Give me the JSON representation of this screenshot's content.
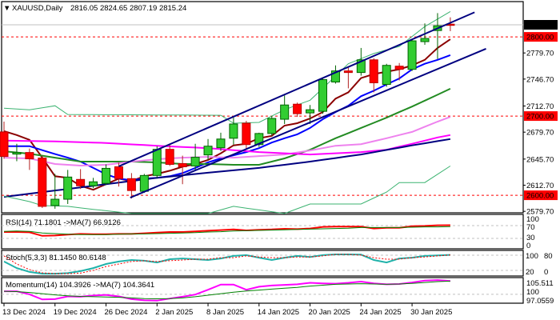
{
  "header": {
    "menu_icon": "triangle-down-icon",
    "symbol": "XAUUSD,Daily",
    "ohlc": "2816.05 2824.65 2807.19 2815.24"
  },
  "price_axis": {
    "current_price": "2815.24",
    "ticks": [
      "2779.70",
      "2746.70",
      "2712.70",
      "2679.70",
      "2645.70",
      "2612.70",
      "2579.70"
    ],
    "levels": [
      "2800.00",
      "2700.00",
      "2600.00"
    ]
  },
  "colors": {
    "bull": "#32CD32",
    "bear": "#FF0000",
    "level": "#FF0000",
    "ma_fast": "#8B0000",
    "ma_blue": "#0000FF",
    "ma_green": "#228B22",
    "ma_violet": "#EE82EE",
    "ma_magenta": "#FF00FF",
    "ma_navy": "#000080",
    "bands": "#3CB371",
    "trend": "#000080",
    "rsi": "#FF0000",
    "rsi_ma": "#008000",
    "stoch_main": "#20B2AA",
    "stoch_signal": "#FF0000",
    "momentum": "#FF00FF",
    "momentum_ma": "#008000"
  },
  "date_ticks": [
    {
      "bar": 1,
      "label": "13 Dec 2024"
    },
    {
      "bar": 5,
      "label": "19 Dec 2024"
    },
    {
      "bar": 9,
      "label": "26 Dec 2024"
    },
    {
      "bar": 13,
      "label": "2 Jan 2025"
    },
    {
      "bar": 17,
      "label": "8 Jan 2025"
    },
    {
      "bar": 21,
      "label": "14 Jan 2025"
    },
    {
      "bar": 25,
      "label": "20 Jan 2025"
    },
    {
      "bar": 29,
      "label": "24 Jan 2025"
    },
    {
      "bar": 33,
      "label": "30 Jan 2025"
    }
  ],
  "chart_data": [
    {
      "type": "candlestick",
      "title": "XAUUSD,Daily",
      "ylim": [
        2579.7,
        2846.5
      ],
      "current_price": 2815.24,
      "horizontal_levels": [
        2800,
        2700,
        2600
      ],
      "ohlc": [
        [
          2680,
          2693,
          2646,
          2649
        ],
        [
          2652,
          2665,
          2643,
          2654
        ],
        [
          2654,
          2659,
          2632,
          2646
        ],
        [
          2647,
          2650,
          2584,
          2586
        ],
        [
          2587,
          2627,
          2583,
          2595
        ],
        [
          2595,
          2632,
          2589,
          2623
        ],
        [
          2620,
          2633,
          2608,
          2612
        ],
        [
          2612,
          2622,
          2609,
          2617
        ],
        [
          2615,
          2639,
          2613,
          2634
        ],
        [
          2636,
          2641,
          2611,
          2621
        ],
        [
          2621,
          2628,
          2596,
          2606
        ],
        [
          2605,
          2627,
          2603,
          2625
        ],
        [
          2625,
          2662,
          2622,
          2658
        ],
        [
          2658,
          2664,
          2637,
          2639
        ],
        [
          2640,
          2650,
          2614,
          2636
        ],
        [
          2637,
          2665,
          2632,
          2648
        ],
        [
          2651,
          2671,
          2645,
          2662
        ],
        [
          2660,
          2679,
          2656,
          2671
        ],
        [
          2672,
          2698,
          2664,
          2690
        ],
        [
          2691,
          2694,
          2658,
          2664
        ],
        [
          2664,
          2679,
          2661,
          2678
        ],
        [
          2678,
          2700,
          2675,
          2697
        ],
        [
          2696,
          2726,
          2690,
          2714
        ],
        [
          2715,
          2717,
          2699,
          2703
        ],
        [
          2704,
          2714,
          2690,
          2708
        ],
        [
          2706,
          2748,
          2703,
          2746
        ],
        [
          2743,
          2764,
          2741,
          2757
        ],
        [
          2757,
          2761,
          2735,
          2755
        ],
        [
          2755,
          2786,
          2751,
          2771
        ],
        [
          2771,
          2773,
          2730,
          2742
        ],
        [
          2740,
          2766,
          2737,
          2764
        ],
        [
          2763,
          2767,
          2745,
          2759
        ],
        [
          2759,
          2797,
          2757,
          2795
        ],
        [
          2794,
          2817,
          2790,
          2798
        ],
        [
          2808,
          2830,
          2772,
          2814
        ],
        [
          2816.05,
          2824.65,
          2807.19,
          2815.24
        ]
      ],
      "lines": [
        {
          "key": "ma_fast",
          "width": 2,
          "values": [
            2681,
            2676,
            2670,
            2647.5,
            2624,
            2622,
            2612,
            2607,
            2614,
            2621,
            2618,
            2624,
            2627,
            2631,
            2636,
            2639.5,
            2644.5,
            2653,
            2663,
            2665,
            2672,
            2675,
            2688,
            2691,
            2697,
            2705,
            2722,
            2730,
            2748,
            2753,
            2756,
            2759,
            2764,
            2771,
            2786,
            2797
          ]
        },
        {
          "key": "ma_blue",
          "width": 2,
          "values": [
            2662,
            2662,
            2662,
            2657,
            2652,
            2647.5,
            2642.5,
            2634.5,
            2626.5,
            2621,
            2619,
            2621,
            2622,
            2624,
            2628,
            2634.5,
            2641.5,
            2646.5,
            2650.5,
            2654.5,
            2659.5,
            2666.5,
            2672,
            2677,
            2685,
            2696,
            2705,
            2713,
            2725,
            2732,
            2740,
            2747.5,
            2759,
            2766,
            2771,
            2777
          ]
        },
        {
          "key": "ma_green",
          "width": 2,
          "values": [
            2655.5,
            null,
            2652.5,
            null,
            2647.5,
            null,
            2642.5,
            null,
            2642.5,
            null,
            2642.5,
            null,
            2641.5,
            null,
            2639.5,
            null,
            2639.5,
            null,
            2638.5,
            null,
            2638.5,
            null,
            2646.5,
            null,
            2657.5,
            null,
            2672,
            null,
            2685,
            null,
            2698,
            null,
            2712,
            null,
            2727,
            2734.5
          ]
        },
        {
          "key": "ma_violet",
          "width": 2,
          "values": [
            2647.5,
            null,
            2646.5,
            null,
            2639.5,
            null,
            2637.5,
            null,
            2638.5,
            null,
            2642.5,
            null,
            2645.5,
            null,
            2647.5,
            null,
            2648.5,
            null,
            2647.5,
            null,
            2649.5,
            null,
            2651.5,
            null,
            2656.5,
            null,
            2662.5,
            null,
            2664.5,
            null,
            2672,
            null,
            2680,
            null,
            2693,
            2699
          ]
        },
        {
          "key": "ma_magenta",
          "width": 2,
          "values": [
            2669,
            null,
            null,
            null,
            2668,
            null,
            null,
            null,
            2666,
            null,
            null,
            null,
            2662.5,
            null,
            null,
            null,
            2659.5,
            null,
            null,
            null,
            2654.5,
            null,
            null,
            null,
            2651.5,
            null,
            null,
            null,
            2654.5,
            null,
            2657.5,
            null,
            2665,
            null,
            2673,
            2676
          ]
        },
        {
          "key": "ma_navy",
          "width": 2,
          "values": [
            2598,
            null,
            null,
            null,
            2606,
            null,
            null,
            null,
            2614,
            null,
            null,
            null,
            2622,
            null,
            null,
            null,
            2628.5,
            null,
            null,
            null,
            2634.5,
            null,
            null,
            null,
            2642.5,
            null,
            null,
            null,
            2651.5,
            null,
            null,
            null,
            2663,
            null,
            null,
            2671
          ]
        },
        {
          "key": "bands",
          "width": 1,
          "values": [
            2710,
            null,
            2708,
            null,
            2713,
            2702,
            null,
            null,
            null,
            null,
            null,
            null,
            null,
            null,
            null,
            null,
            null,
            2701,
            2691,
            null,
            2692,
            null,
            2708,
            null,
            2720,
            2735,
            null,
            2766,
            null,
            2779,
            null,
            2788,
            null,
            2813,
            null,
            2832
          ]
        },
        {
          "key": "bands",
          "width": 1,
          "values": [
            2599,
            null,
            2592,
            2587,
            null,
            2586,
            2584,
            null,
            null,
            null,
            2577,
            null,
            null,
            null,
            null,
            null,
            2577,
            null,
            2586,
            null,
            null,
            null,
            2577,
            null,
            2589,
            null,
            null,
            null,
            2589,
            null,
            2604,
            2616,
            null,
            2616,
            null,
            2637
          ]
        }
      ],
      "trend_lines": [
        {
          "from": {
            "bar": 10,
            "price": 2636.5
          },
          "to": {
            "bar": 37.9,
            "price": 2831
          }
        },
        {
          "from": {
            "bar": 10.9,
            "price": 2597
          },
          "to": {
            "bar": 38.8,
            "price": 2785
          }
        }
      ]
    },
    {
      "type": "line",
      "name": "RSI(14) 71.1801  ->MA(7) 66.9126",
      "ylim": [
        0,
        100
      ],
      "levels": [
        70,
        30
      ],
      "axis_labels": [
        "100",
        "70",
        "30",
        "0"
      ],
      "series": [
        {
          "key": "rsi",
          "width": 2,
          "values": [
            50,
            50,
            49,
            38,
            39,
            42,
            44,
            43,
            43,
            44,
            44,
            46,
            48,
            50,
            50,
            52,
            54,
            56,
            58,
            55,
            57,
            58,
            60,
            59,
            61,
            66,
            67,
            67,
            67,
            61,
            63,
            63,
            68,
            69,
            71,
            71.18
          ]
        },
        {
          "key": "rsi_ma",
          "width": 1,
          "values": [
            52,
            53,
            52,
            47,
            45,
            43,
            42,
            42,
            42,
            43,
            44,
            44,
            45,
            46,
            47,
            48,
            50,
            51,
            53,
            54,
            55,
            56,
            57,
            58,
            59,
            60,
            61,
            62,
            64,
            64,
            64,
            64,
            65,
            66,
            66,
            66.91
          ]
        }
      ]
    },
    {
      "type": "line",
      "name": "Stoch(5,3,3) 81.1450 80.6148",
      "ylim": [
        0,
        100
      ],
      "levels": [
        80,
        20
      ],
      "axis_labels": [
        "100",
        "80",
        "20",
        "0"
      ],
      "series": [
        {
          "key": "stoch_main",
          "width": 2,
          "values": [
            55,
            29,
            14,
            7,
            7,
            9,
            17,
            29,
            45,
            55,
            61,
            58,
            51,
            64,
            67,
            64,
            61,
            67,
            77,
            80,
            70,
            61,
            70,
            77,
            73,
            80,
            83,
            83,
            82,
            61,
            51,
            67,
            70,
            77,
            79,
            81.15
          ]
        },
        {
          "key": "stoch_signal",
          "width": 1,
          "dashed": true,
          "values": [
            77,
            45,
            23,
            10,
            7,
            7,
            9,
            20,
            35,
            45,
            55,
            58,
            55,
            58,
            61,
            64,
            64,
            70,
            70,
            77,
            73,
            70,
            70,
            73,
            73,
            77,
            83,
            83,
            80,
            70,
            64,
            64,
            70,
            73,
            77,
            80.61
          ]
        }
      ]
    },
    {
      "type": "line",
      "name": "Momentum(14) 104.3926  ->MA(7) 104.3641",
      "ylim": [
        97.0559,
        105.511
      ],
      "levels": [
        100
      ],
      "axis_labels": [
        "105.511",
        "100",
        "97.0559"
      ],
      "series": [
        {
          "key": "momentum",
          "width": 2,
          "values": [
            101.0,
            101.0,
            100.0,
            98.3,
            98.4,
            99.3,
            99.2,
            99.6,
            99.8,
            99.3,
            98.4,
            98.0,
            97.9,
            98.6,
            99.2,
            99.9,
            101.5,
            103.2,
            103.2,
            101.5,
            102.5,
            102.9,
            103.1,
            103.3,
            103.8,
            103.6,
            103.5,
            103.8,
            104.2,
            103.6,
            103.3,
            103.4,
            103.9,
            104.5,
            104.7,
            104.39
          ]
        },
        {
          "key": "momentum_ma",
          "width": 1,
          "values": [
            101.0,
            100.9,
            100.6,
            100.2,
            99.8,
            99.5,
            99.3,
            99.2,
            99.1,
            99.0,
            98.8,
            98.6,
            98.5,
            98.6,
            98.8,
            99.2,
            99.7,
            100.2,
            100.7,
            101.1,
            101.4,
            101.7,
            102.0,
            102.3,
            102.7,
            103.0,
            103.3,
            103.4,
            103.5,
            103.4,
            103.3,
            103.4,
            103.6,
            103.9,
            104.2,
            104.36
          ]
        }
      ]
    }
  ]
}
